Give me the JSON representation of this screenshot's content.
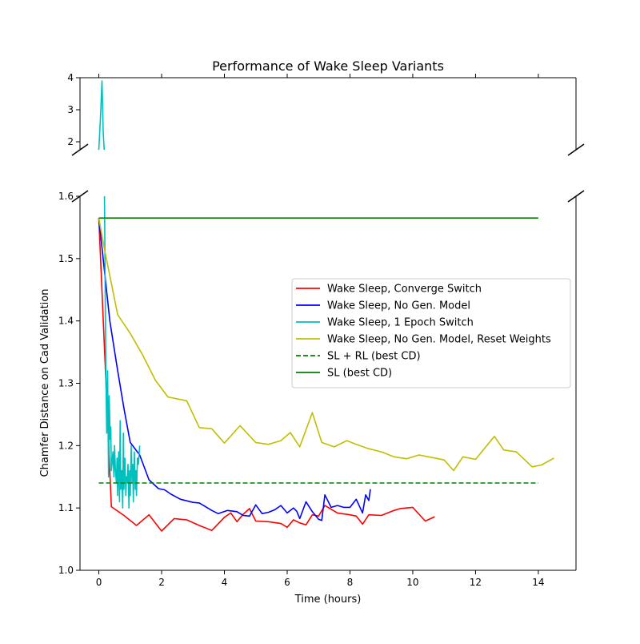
{
  "chart_data": {
    "type": "line",
    "title": "Performance of Wake Sleep Variants",
    "xlabel": "Time (hours)",
    "ylabel": "Chamfer Distance on Cad Validation",
    "xlim": [
      -0.6,
      15.2
    ],
    "ylim_lower": [
      1.0,
      1.6
    ],
    "ylim_upper": [
      1.75,
      4.0
    ],
    "broken_y_axis": true,
    "x_ticks": [
      "0",
      "2",
      "4",
      "6",
      "8",
      "10",
      "12",
      "14"
    ],
    "y_ticks_lower": [
      "1.0",
      "1.1",
      "1.2",
      "1.3",
      "1.4",
      "1.5",
      "1.6"
    ],
    "y_ticks_upper": [
      "2",
      "3",
      "4"
    ],
    "grid": false,
    "legend_position": "center-right",
    "series": [
      {
        "name": "Wake Sleep, Converge Switch",
        "color": "#ff0000",
        "style": "solid",
        "x": [
          0,
          0.4,
          0.8,
          1.2,
          1.6,
          2.0,
          2.4,
          2.8,
          3.2,
          3.6,
          4.0,
          4.2,
          4.4,
          4.6,
          4.8,
          5.0,
          5.4,
          5.8,
          6.0,
          6.2,
          6.4,
          6.6,
          6.8,
          7.0,
          7.2,
          7.6,
          8.0,
          8.2,
          8.4,
          8.6,
          9.0,
          9.4,
          9.6,
          10.0,
          10.4,
          10.7
        ],
        "y": [
          1.565,
          1.102,
          1.088,
          1.072,
          1.089,
          1.063,
          1.083,
          1.081,
          1.072,
          1.064,
          1.085,
          1.092,
          1.078,
          1.09,
          1.099,
          1.079,
          1.078,
          1.075,
          1.069,
          1.081,
          1.076,
          1.073,
          1.089,
          1.087,
          1.104,
          1.092,
          1.089,
          1.087,
          1.074,
          1.089,
          1.088,
          1.096,
          1.099,
          1.101,
          1.079,
          1.086
        ]
      },
      {
        "name": "Wake Sleep, No Gen. Model",
        "color": "#0000ff",
        "style": "solid",
        "x": [
          0,
          0.35,
          0.6,
          0.8,
          1.0,
          1.3,
          1.6,
          1.9,
          2.1,
          2.3,
          2.6,
          3.0,
          3.2,
          3.6,
          3.8,
          4.1,
          4.4,
          4.6,
          4.8,
          5.0,
          5.2,
          5.4,
          5.6,
          5.8,
          6.0,
          6.2,
          6.3,
          6.4,
          6.6,
          6.8,
          7.0,
          7.1,
          7.2,
          7.4,
          7.6,
          7.8,
          8.0,
          8.2,
          8.4,
          8.5,
          8.6,
          8.65
        ],
        "y": [
          1.565,
          1.4,
          1.32,
          1.26,
          1.205,
          1.185,
          1.145,
          1.131,
          1.129,
          1.122,
          1.114,
          1.109,
          1.108,
          1.096,
          1.091,
          1.096,
          1.094,
          1.088,
          1.087,
          1.105,
          1.091,
          1.093,
          1.097,
          1.104,
          1.092,
          1.1,
          1.095,
          1.083,
          1.11,
          1.094,
          1.082,
          1.08,
          1.121,
          1.101,
          1.104,
          1.101,
          1.101,
          1.114,
          1.092,
          1.121,
          1.112,
          1.13
        ]
      },
      {
        "name": "Wake Sleep, 1 Epoch Switch",
        "color": "#00bfbf",
        "style": "solid",
        "x": [
          0,
          0.05,
          0.1,
          0.14,
          0.18,
          0.22,
          0.25,
          0.28,
          0.31,
          0.33,
          0.36,
          0.38,
          0.4,
          0.42,
          0.45,
          0.48,
          0.5,
          0.53,
          0.56,
          0.58,
          0.6,
          0.63,
          0.66,
          0.68,
          0.7,
          0.73,
          0.76,
          0.78,
          0.8,
          0.83,
          0.86,
          0.88,
          0.9,
          0.93,
          0.96,
          0.98,
          1.0,
          1.03,
          1.06,
          1.08,
          1.1,
          1.13,
          1.16,
          1.18,
          1.2,
          1.23,
          1.26,
          1.3
        ],
        "y": [
          1.75,
          2.7,
          3.9,
          2.3,
          1.6,
          1.33,
          1.22,
          1.32,
          1.15,
          1.28,
          1.21,
          1.23,
          1.16,
          1.17,
          1.19,
          1.15,
          1.2,
          1.16,
          1.14,
          1.18,
          1.12,
          1.19,
          1.11,
          1.24,
          1.13,
          1.16,
          1.1,
          1.22,
          1.13,
          1.18,
          1.12,
          1.15,
          1.14,
          1.17,
          1.1,
          1.16,
          1.12,
          1.2,
          1.14,
          1.17,
          1.11,
          1.19,
          1.13,
          1.16,
          1.12,
          1.18,
          1.17,
          1.2
        ]
      },
      {
        "name": "Wake Sleep, No Gen. Model, Reset Weights",
        "color": "#bfbf00",
        "style": "solid",
        "x": [
          0,
          0.2,
          0.6,
          1.0,
          1.4,
          1.8,
          2.2,
          2.8,
          3.2,
          3.6,
          4.0,
          4.5,
          5.0,
          5.4,
          5.8,
          6.1,
          6.4,
          6.8,
          7.1,
          7.5,
          7.9,
          8.2,
          8.6,
          9.0,
          9.4,
          9.8,
          10.2,
          10.5,
          11.0,
          11.3,
          11.6,
          12.0,
          12.6,
          12.9,
          13.3,
          13.8,
          14.1,
          14.5
        ],
        "y": [
          1.565,
          1.51,
          1.41,
          1.38,
          1.345,
          1.305,
          1.278,
          1.272,
          1.229,
          1.227,
          1.204,
          1.232,
          1.205,
          1.202,
          1.208,
          1.221,
          1.198,
          1.253,
          1.205,
          1.198,
          1.208,
          1.202,
          1.195,
          1.19,
          1.182,
          1.179,
          1.185,
          1.182,
          1.177,
          1.16,
          1.182,
          1.178,
          1.215,
          1.193,
          1.19,
          1.166,
          1.169,
          1.18
        ]
      },
      {
        "name": "SL + RL (best CD)",
        "color": "#008000",
        "style": "dashed",
        "x": [
          0,
          14
        ],
        "y": [
          1.14,
          1.14
        ]
      },
      {
        "name": "SL (best CD)",
        "color": "#008000",
        "style": "solid",
        "x": [
          0,
          14
        ],
        "y": [
          1.565,
          1.565
        ]
      }
    ]
  }
}
